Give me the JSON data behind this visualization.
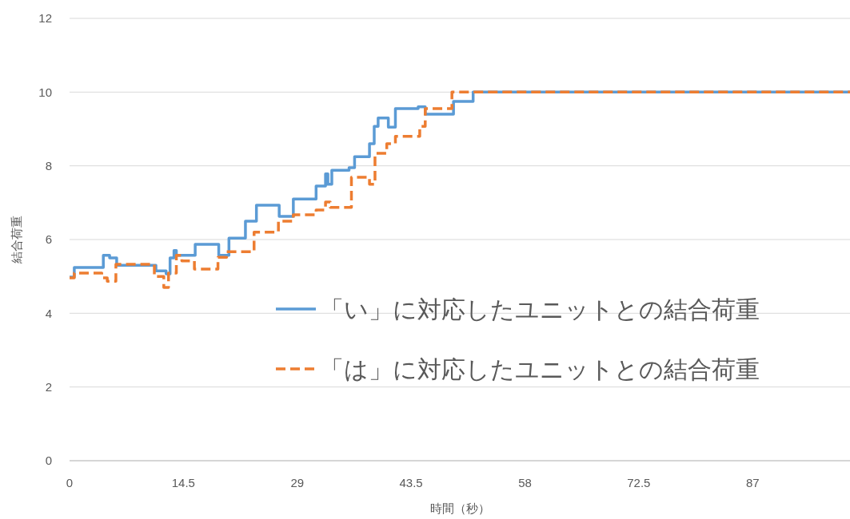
{
  "chart_data": {
    "type": "step",
    "xlabel": "時間（秒）",
    "ylabel": "結合荷重",
    "xlim": [
      0,
      99.4
    ],
    "xticks": [
      0,
      14.5,
      29,
      43.5,
      58,
      72.5,
      87
    ],
    "ylim": [
      0,
      12
    ],
    "yticks": [
      0,
      2,
      4,
      6,
      8,
      10,
      12
    ],
    "grid": "y",
    "legend": "right",
    "series": [
      {
        "name": "「い」に対応したユニットとの結合荷重",
        "color": "#5b9bd5",
        "line_style": "solid",
        "x": [
          0,
          0.6,
          4.3,
          5.1,
          6.0,
          11.0,
          12.3,
          12.8,
          13.3,
          13.6,
          16.0,
          19.0,
          20.3,
          22.4,
          23.8,
          26.7,
          28.5,
          31.4,
          32.6,
          32.9,
          33.4,
          35.6,
          36.3,
          38.2,
          38.8,
          39.3,
          40.6,
          41.5,
          44.4,
          45.3,
          48.9,
          51.4,
          99.4
        ],
        "values": [
          4.98,
          5.24,
          5.57,
          5.5,
          5.3,
          5.15,
          5.07,
          5.5,
          5.7,
          5.57,
          5.87,
          5.57,
          6.04,
          6.5,
          6.93,
          6.63,
          7.1,
          7.45,
          7.78,
          7.5,
          7.88,
          7.95,
          8.25,
          8.6,
          9.07,
          9.3,
          9.05,
          9.55,
          9.6,
          9.4,
          9.75,
          10.0,
          10.0
        ]
      },
      {
        "name": "「は」に対応したユニットとの結合荷重",
        "color": "#ed7d31",
        "line_style": "dashed",
        "x": [
          0,
          0.6,
          4.1,
          4.8,
          5.9,
          10.8,
          12.0,
          12.6,
          13.6,
          14.3,
          15.9,
          18.9,
          20.0,
          23.5,
          26.6,
          28.5,
          31.4,
          32.6,
          33.2,
          35.9,
          38.2,
          38.9,
          40.4,
          41.5,
          44.6,
          45.3,
          48.7,
          99.4
        ],
        "values": [
          4.96,
          5.09,
          4.96,
          4.87,
          5.33,
          5.0,
          4.7,
          5.09,
          5.57,
          5.42,
          5.2,
          5.52,
          5.67,
          6.2,
          6.5,
          6.67,
          6.8,
          7.02,
          6.87,
          7.69,
          7.5,
          8.34,
          8.6,
          8.8,
          9.07,
          9.55,
          10.0,
          10.0
        ]
      }
    ]
  }
}
